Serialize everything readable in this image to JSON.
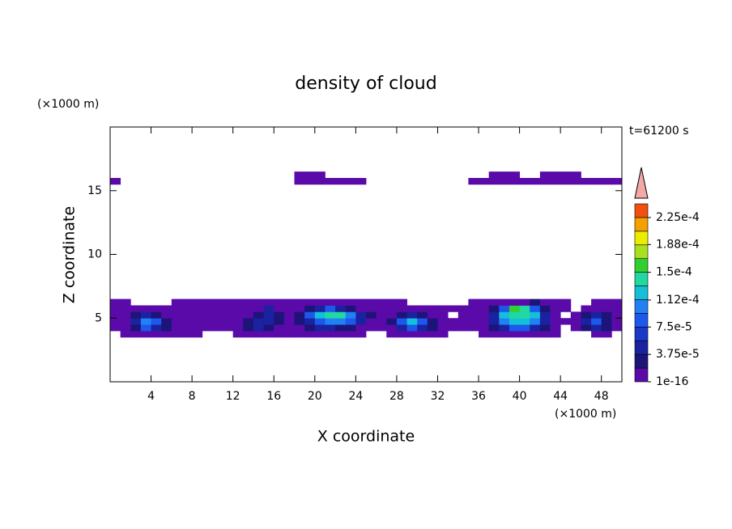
{
  "chart_data": {
    "type": "contour",
    "title": "density of cloud",
    "x_label": "X coordinate",
    "y_label": "Z coordinate",
    "x_unit": "(×1000 m)",
    "y_unit": "(×1000 m)",
    "time_label": "t=61200 s",
    "xlim": [
      0,
      50
    ],
    "ylim": [
      0,
      20
    ],
    "xticks": [
      4,
      8,
      12,
      16,
      20,
      24,
      28,
      32,
      36,
      40,
      44,
      48
    ],
    "yticks": [
      5,
      10,
      15
    ],
    "x": [
      0.5,
      1.5,
      2.5,
      3.5,
      4.5,
      5.5,
      6.5,
      7.5,
      8.5,
      9.5,
      10.5,
      11.5,
      12.5,
      13.5,
      14.5,
      15.5,
      16.5,
      17.5,
      18.5,
      19.5,
      20.5,
      21.5,
      22.5,
      23.5,
      24.5,
      25.5,
      26.5,
      27.5,
      28.5,
      29.5,
      30.5,
      31.5,
      32.5,
      33.5,
      34.5,
      35.5,
      36.5,
      37.5,
      38.5,
      39.5,
      40.5,
      41.5,
      42.5,
      43.5,
      44.5,
      45.5,
      46.5,
      47.5,
      48.5,
      49.5
    ],
    "z": [
      3.75,
      4.25,
      4.75,
      5.25,
      5.75,
      6.25,
      15.75,
      16.25
    ],
    "values": [
      [
        0,
        1e-05,
        1e-05,
        1e-05,
        1e-05,
        1e-05,
        1e-05,
        1e-05,
        1e-05,
        0,
        0,
        0,
        1e-05,
        1e-05,
        1e-05,
        1e-05,
        1e-05,
        1e-05,
        1e-05,
        1e-05,
        1e-05,
        1e-05,
        1e-05,
        1e-05,
        1e-05,
        0,
        0,
        1e-05,
        1e-05,
        1e-05,
        1e-05,
        1e-05,
        1e-05,
        0,
        0,
        0,
        1e-05,
        1e-05,
        1e-05,
        1e-05,
        1e-05,
        1e-05,
        1e-05,
        1e-05,
        0,
        0,
        0,
        1e-05,
        1e-05,
        0
      ],
      [
        1e-05,
        1e-05,
        2.5e-05,
        8e-05,
        5e-05,
        2.5e-05,
        1e-05,
        1e-05,
        1e-05,
        1e-05,
        1e-05,
        1e-05,
        1e-05,
        2.5e-05,
        5e-05,
        2.5e-05,
        1e-05,
        1e-05,
        1e-05,
        2.5e-05,
        5e-05,
        5e-05,
        2.5e-05,
        2.5e-05,
        1e-05,
        1e-05,
        1e-05,
        1e-05,
        5e-05,
        8e-05,
        5e-05,
        2.5e-05,
        1e-05,
        1e-05,
        1e-05,
        1e-05,
        1e-05,
        2.5e-05,
        5e-05,
        8e-05,
        8e-05,
        5e-05,
        2.5e-05,
        1e-05,
        0,
        1e-05,
        2.5e-05,
        5e-05,
        2.5e-05,
        1e-05
      ],
      [
        1e-05,
        1e-05,
        5e-05,
        0.0001,
        8e-05,
        2.5e-05,
        1e-05,
        1e-05,
        1e-05,
        1e-05,
        1e-05,
        1e-05,
        1e-05,
        2.5e-05,
        5e-05,
        5e-05,
        2.5e-05,
        1e-05,
        2.5e-05,
        5e-05,
        8e-05,
        0.0001,
        0.0001,
        8e-05,
        5e-05,
        1e-05,
        1e-05,
        2.5e-05,
        8e-05,
        0.00012,
        8e-05,
        2.5e-05,
        1e-05,
        1e-05,
        1e-05,
        1e-05,
        1e-05,
        5e-05,
        0.0001,
        0.00012,
        0.00012,
        0.0001,
        5e-05,
        1e-05,
        1e-05,
        1e-05,
        5e-05,
        8e-05,
        2.5e-05,
        1e-05
      ],
      [
        1e-05,
        1e-05,
        2.5e-05,
        5e-05,
        2.5e-05,
        1e-05,
        1e-05,
        1e-05,
        1e-05,
        1e-05,
        1e-05,
        1e-05,
        1e-05,
        1e-05,
        2.5e-05,
        5e-05,
        2.5e-05,
        1e-05,
        2.5e-05,
        8e-05,
        0.00012,
        0.00014,
        0.00014,
        0.0001,
        5e-05,
        2.5e-05,
        1e-05,
        1e-05,
        2.5e-05,
        5e-05,
        2.5e-05,
        1e-05,
        1e-05,
        0,
        1e-05,
        1e-05,
        1e-05,
        5e-05,
        0.00012,
        0.00014,
        0.00014,
        0.00012,
        5e-05,
        1e-05,
        0,
        1e-05,
        2.5e-05,
        5e-05,
        2.5e-05,
        1e-05
      ],
      [
        1e-05,
        1e-05,
        1e-05,
        1e-05,
        1e-05,
        1e-05,
        1e-05,
        1e-05,
        1e-05,
        1e-05,
        1e-05,
        1e-05,
        1e-05,
        1e-05,
        1e-05,
        5e-05,
        1e-05,
        1e-05,
        1e-05,
        2.5e-05,
        5e-05,
        8e-05,
        5e-05,
        2.5e-05,
        1e-05,
        1e-05,
        1e-05,
        1e-05,
        1e-05,
        1e-05,
        1e-05,
        1e-05,
        1e-05,
        1e-05,
        1e-05,
        1e-05,
        1e-05,
        2.5e-05,
        8e-05,
        0.00016,
        0.00014,
        8e-05,
        2.5e-05,
        1e-05,
        1e-05,
        0,
        1e-05,
        1e-05,
        1e-05,
        1e-05
      ],
      [
        1e-05,
        1e-05,
        0,
        0,
        0,
        0,
        1e-05,
        1e-05,
        1e-05,
        1e-05,
        1e-05,
        1e-05,
        1e-05,
        1e-05,
        1e-05,
        1e-05,
        1e-05,
        1e-05,
        1e-05,
        1e-05,
        1e-05,
        1e-05,
        1e-05,
        1e-05,
        1e-05,
        1e-05,
        1e-05,
        1e-05,
        1e-05,
        0,
        0,
        0,
        0,
        0,
        0,
        1e-05,
        1e-05,
        1e-05,
        1e-05,
        1e-05,
        1e-05,
        2.5e-05,
        1e-05,
        1e-05,
        1e-05,
        0,
        0,
        1e-05,
        1e-05,
        1e-05
      ],
      [
        1e-05,
        0,
        0,
        0,
        0,
        0,
        0,
        0,
        0,
        0,
        0,
        0,
        0,
        0,
        0,
        0,
        0,
        0,
        1e-05,
        1e-05,
        1e-05,
        1e-05,
        1e-05,
        1e-05,
        1e-05,
        0,
        0,
        0,
        0,
        0,
        0,
        0,
        0,
        0,
        0,
        1e-05,
        1e-05,
        1e-05,
        1e-05,
        1e-05,
        1e-05,
        1e-05,
        1e-05,
        1e-05,
        1e-05,
        1e-05,
        1e-05,
        1e-05,
        1e-05,
        1e-05
      ],
      [
        0,
        0,
        0,
        0,
        0,
        0,
        0,
        0,
        0,
        0,
        0,
        0,
        0,
        0,
        0,
        0,
        0,
        0,
        1e-05,
        1e-05,
        1e-05,
        0,
        0,
        0,
        0,
        0,
        0,
        0,
        0,
        0,
        0,
        0,
        0,
        0,
        0,
        0,
        0,
        1e-05,
        1e-05,
        1e-05,
        0,
        0,
        1e-05,
        1e-05,
        1e-05,
        1e-05,
        0,
        0,
        0,
        0
      ]
    ],
    "levels": [
      1e-16,
      1.875e-05,
      3.75e-05,
      5.625e-05,
      7.5e-05,
      9.375e-05,
      0.0001125,
      0.00013125,
      0.00015,
      0.00016875,
      0.0001875,
      0.00020625,
      0.000225,
      0.00024375
    ],
    "colors": [
      "#5a0aa8",
      "#1c1478",
      "#1a22a0",
      "#1c38c8",
      "#1c58ec",
      "#2080f4",
      "#14c0d8",
      "#20d8a0",
      "#30d030",
      "#a8e020",
      "#ecec00",
      "#f4a000",
      "#f05010"
    ],
    "colorbar_ticks": [
      {
        "value": 1e-16,
        "label": "1e-16"
      },
      {
        "value": 3.75e-05,
        "label": "3.75e-5"
      },
      {
        "value": 7.5e-05,
        "label": "7.5e-5"
      },
      {
        "value": 0.000112,
        "label": "1.12e-4"
      },
      {
        "value": 0.00015,
        "label": "1.5e-4"
      },
      {
        "value": 0.000188,
        "label": "1.88e-4"
      },
      {
        "value": 0.000225,
        "label": "2.25e-4"
      }
    ]
  }
}
